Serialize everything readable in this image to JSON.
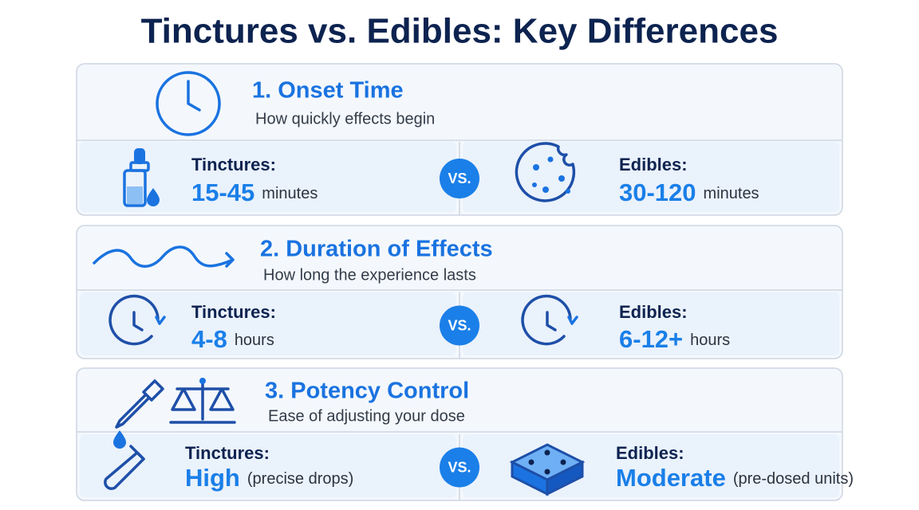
{
  "title": "Tinctures vs. Edibles: Key Differences",
  "vs": "VS.",
  "sections": [
    {
      "title": "1. Onset Time",
      "subtitle": "How quickly effects begin",
      "left": {
        "label": "Tinctures:",
        "value": "15-45",
        "unit": "minutes"
      },
      "right": {
        "label": "Edibles:",
        "value": "30-120",
        "unit": "minutes"
      }
    },
    {
      "title": "2. Duration of Effects",
      "subtitle": "How long the experience lasts",
      "left": {
        "label": "Tinctures:",
        "value": "4-8",
        "unit": "hours"
      },
      "right": {
        "label": "Edibles:",
        "value": "6-12+",
        "unit": "hours"
      }
    },
    {
      "title": "3. Potency Control",
      "subtitle": "Ease of adjusting your dose",
      "left": {
        "label": "Tinctures:",
        "value": "High",
        "unit": "(precise drops)"
      },
      "right": {
        "label": "Edibles:",
        "value": "Moderate",
        "unit": "(pre-dosed units)"
      }
    }
  ]
}
